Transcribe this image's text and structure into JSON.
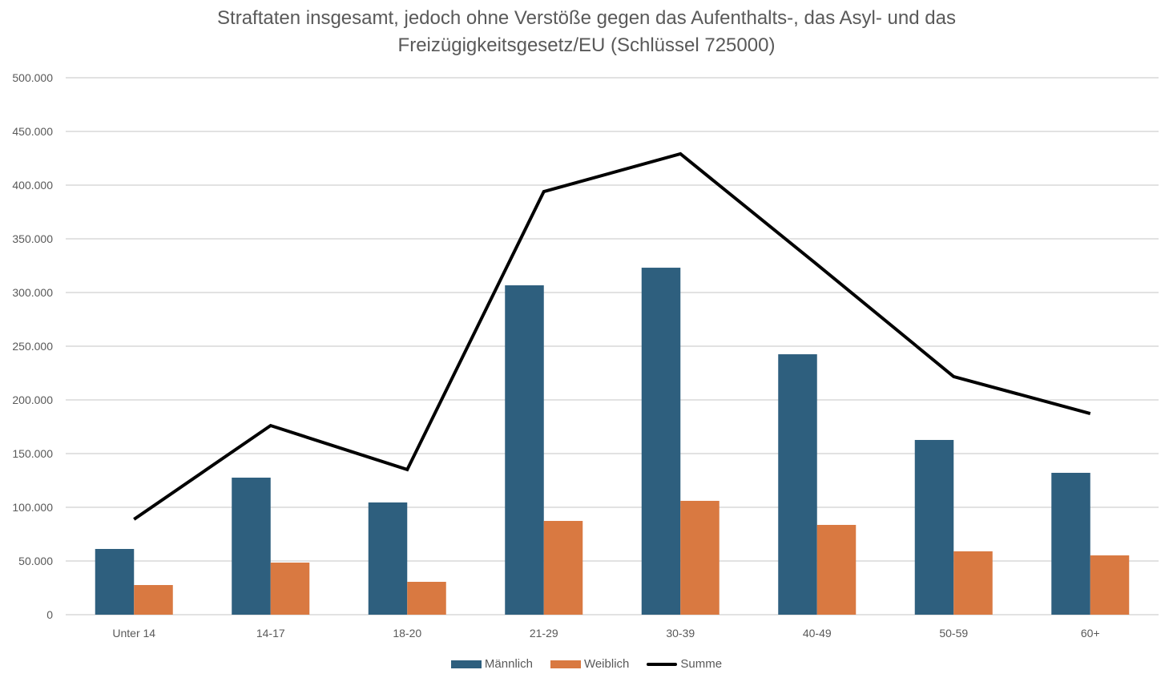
{
  "chart_data": {
    "type": "bar",
    "title": "Straftaten insgesamt, jedoch ohne Verstöße gegen das Aufenthalts-, das Asyl- und das Freizügigkeitsgesetz/EU (Schlüssel 725000)",
    "title_lines": [
      "Straftaten insgesamt, jedoch ohne Verstöße gegen das Aufenthalts-, das Asyl- und das",
      "Freizügigkeitsgesetz/EU (Schlüssel 725000)"
    ],
    "xlabel": "",
    "ylabel": "",
    "ylim": [
      0,
      500000
    ],
    "yticks": [
      0,
      50000,
      100000,
      150000,
      200000,
      250000,
      300000,
      350000,
      400000,
      450000,
      500000
    ],
    "ytick_labels": [
      "0",
      "50.000",
      "100.000",
      "150.000",
      "200.000",
      "250.000",
      "300.000",
      "350.000",
      "400.000",
      "450.000",
      "500.000"
    ],
    "grid": true,
    "legend_position": "bottom",
    "categories": [
      "Unter 14",
      "14-17",
      "18-20",
      "21-29",
      "30-39",
      "40-49",
      "50-59",
      "60+"
    ],
    "series": [
      {
        "name": "Männlich",
        "type": "bar",
        "color": "#2E5F7E",
        "values": [
          61200,
          127600,
          104500,
          306700,
          323100,
          242500,
          162700,
          132100
        ]
      },
      {
        "name": "Weiblich",
        "type": "bar",
        "color": "#D97941",
        "values": [
          27600,
          48500,
          30600,
          87300,
          106000,
          83600,
          59000,
          55200
        ]
      },
      {
        "name": "Summe",
        "type": "line",
        "color": "#000000",
        "values": [
          88800,
          176100,
          135100,
          394000,
          429100,
          326100,
          221700,
          187300
        ]
      }
    ]
  }
}
